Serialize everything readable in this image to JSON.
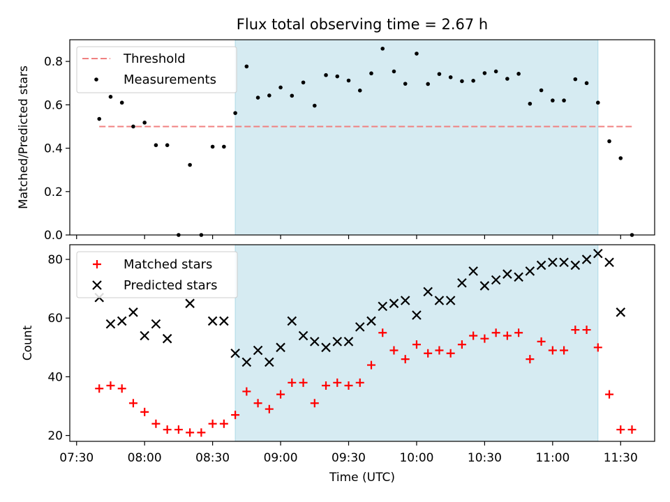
{
  "title": "Flux total observing time = 2.67 h",
  "chart_data": [
    {
      "type": "scatter",
      "ylabel": "Matched/Predicted stars",
      "ylim": [
        0,
        0.9
      ],
      "yticks": [
        "0.0",
        "0.2",
        "0.4",
        "0.6",
        "0.8"
      ],
      "legend": {
        "location": "top-left",
        "entries": [
          "Threshold",
          "Measurements"
        ]
      },
      "colors": {
        "threshold": "#f08080",
        "measurements": "#000000",
        "highlight": "#add8e6"
      },
      "highlight_span": [
        "08:40",
        "11:20"
      ],
      "threshold": {
        "name": "Threshold",
        "value": 0.5,
        "x_range": [
          "07:40",
          "11:35"
        ]
      },
      "series": [
        {
          "name": "Measurements",
          "marker": "dot",
          "x": [
            "07:40",
            "07:45",
            "07:50",
            "07:55",
            "08:00",
            "08:05",
            "08:10",
            "08:15",
            "08:20",
            "08:25",
            "08:30",
            "08:35",
            "08:40",
            "08:45",
            "08:50",
            "08:55",
            "09:00",
            "09:05",
            "09:10",
            "09:15",
            "09:20",
            "09:25",
            "09:30",
            "09:35",
            "09:40",
            "09:45",
            "09:50",
            "09:55",
            "10:00",
            "10:05",
            "10:10",
            "10:15",
            "10:20",
            "10:25",
            "10:30",
            "10:35",
            "10:40",
            "10:45",
            "10:50",
            "10:55",
            "11:00",
            "11:05",
            "11:10",
            "11:15",
            "11:20",
            "11:25",
            "11:30",
            "11:35"
          ],
          "y": [
            0.535,
            0.637,
            0.61,
            0.5,
            0.518,
            0.414,
            0.414,
            0.0,
            0.323,
            0.0,
            0.407,
            0.407,
            0.562,
            0.777,
            0.633,
            0.643,
            0.68,
            0.642,
            0.703,
            0.596,
            0.737,
            0.731,
            0.712,
            0.666,
            0.745,
            0.859,
            0.754,
            0.697,
            0.836,
            0.696,
            0.742,
            0.727,
            0.709,
            0.711,
            0.746,
            0.754,
            0.72,
            0.743,
            0.605,
            0.667,
            0.62,
            0.62,
            0.718,
            0.7,
            0.61,
            0.432,
            0.354,
            0.0
          ]
        }
      ]
    },
    {
      "type": "scatter",
      "xlabel": "Time (UTC)",
      "ylabel": "Count",
      "ylim": [
        18,
        85
      ],
      "yticks": [
        "20",
        "40",
        "60",
        "80"
      ],
      "xticks": [
        "07:30",
        "08:00",
        "08:30",
        "09:00",
        "09:30",
        "10:00",
        "10:30",
        "11:00",
        "11:30"
      ],
      "legend": {
        "location": "top-left",
        "entries": [
          "Matched stars",
          "Predicted stars"
        ]
      },
      "colors": {
        "matched": "#ff0000",
        "predicted": "#000000",
        "highlight": "#add8e6"
      },
      "highlight_span": [
        "08:40",
        "11:20"
      ],
      "series": [
        {
          "name": "Matched stars",
          "marker": "plus",
          "x": [
            "07:40",
            "07:45",
            "07:50",
            "07:55",
            "08:00",
            "08:05",
            "08:10",
            "08:15",
            "08:20",
            "08:25",
            "08:30",
            "08:35",
            "08:40",
            "08:45",
            "08:50",
            "08:55",
            "09:00",
            "09:05",
            "09:10",
            "09:15",
            "09:20",
            "09:25",
            "09:30",
            "09:35",
            "09:40",
            "09:45",
            "09:50",
            "09:55",
            "10:00",
            "10:05",
            "10:10",
            "10:15",
            "10:20",
            "10:25",
            "10:30",
            "10:35",
            "10:40",
            "10:45",
            "10:50",
            "10:55",
            "11:00",
            "11:05",
            "11:10",
            "11:15",
            "11:20",
            "11:25",
            "11:30",
            "11:35"
          ],
          "y": [
            36,
            37,
            36,
            31,
            28,
            24,
            22,
            22,
            21,
            21,
            24,
            24,
            27,
            35,
            31,
            29,
            34,
            38,
            38,
            31,
            37,
            38,
            37,
            38,
            44,
            55,
            49,
            46,
            51,
            48,
            49,
            48,
            51,
            54,
            53,
            55,
            54,
            55,
            46,
            52,
            49,
            49,
            56,
            56,
            50,
            34,
            22,
            22
          ]
        },
        {
          "name": "Predicted stars",
          "marker": "x",
          "x": [
            "07:40",
            "07:45",
            "07:50",
            "07:55",
            "08:00",
            "08:05",
            "08:10",
            "08:20",
            "08:30",
            "08:35",
            "08:40",
            "08:45",
            "08:50",
            "08:55",
            "09:00",
            "09:05",
            "09:10",
            "09:15",
            "09:20",
            "09:25",
            "09:30",
            "09:35",
            "09:40",
            "09:45",
            "09:50",
            "09:55",
            "10:00",
            "10:05",
            "10:10",
            "10:15",
            "10:20",
            "10:25",
            "10:30",
            "10:35",
            "10:40",
            "10:45",
            "10:50",
            "10:55",
            "11:00",
            "11:05",
            "11:10",
            "11:15",
            "11:20",
            "11:25",
            "11:30"
          ],
          "y": [
            67,
            58,
            59,
            62,
            54,
            58,
            53,
            65,
            59,
            59,
            48,
            45,
            49,
            45,
            50,
            59,
            54,
            52,
            50,
            52,
            52,
            57,
            59,
            64,
            65,
            66,
            61,
            69,
            66,
            66,
            72,
            76,
            71,
            73,
            75,
            74,
            76,
            78,
            79,
            79,
            78,
            80,
            82,
            79,
            62
          ]
        }
      ]
    }
  ]
}
